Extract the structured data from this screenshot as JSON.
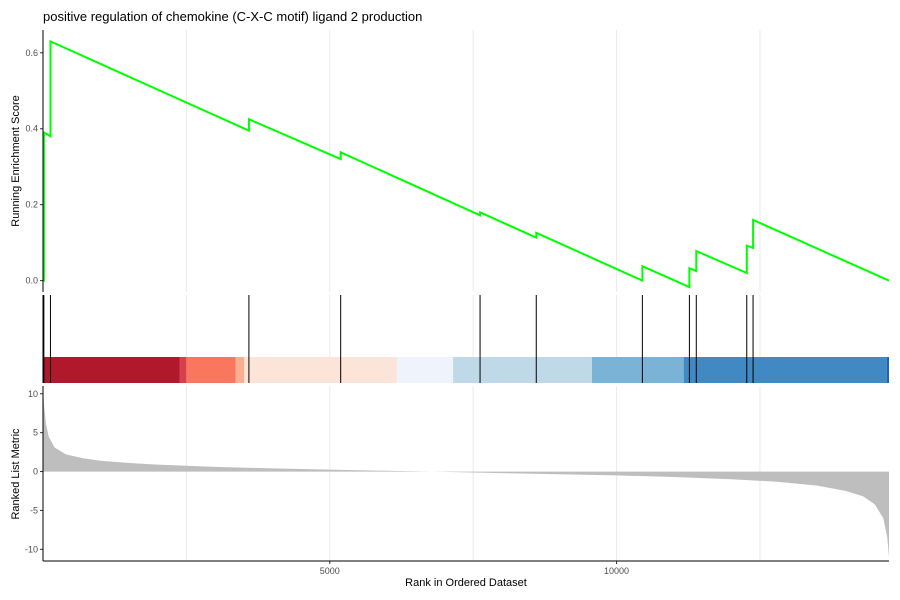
{
  "chart_data": {
    "type": "line",
    "title": "positive regulation of chemokine (C-X-C motif) ligand 2 production",
    "n_genes": 14750,
    "colors": {
      "enrichment_line": "#00ff00",
      "hit_line": "#000000",
      "metric_fill": "#bebebe",
      "grid": "#ebebeb"
    },
    "panels": [
      {
        "name": "running-enrichment",
        "ylabel": "Running Enrichment Score",
        "ylim": [
          -0.03,
          0.66
        ],
        "yticks": [
          0.0,
          0.2,
          0.4,
          0.6
        ],
        "ytick_labels": [
          "0.0",
          "0.2",
          "0.4",
          "0.6"
        ]
      },
      {
        "name": "ranked-metric",
        "ylabel": "Ranked List Metric",
        "ylim": [
          -11.5,
          11
        ],
        "yticks": [
          10,
          5,
          0,
          -5,
          -10
        ],
        "ytick_labels": [
          "10",
          "5",
          "0",
          "-5",
          "-10"
        ]
      }
    ],
    "xlabel": "Rank in Ordered Dataset",
    "xlim": [
      0,
      14750
    ],
    "xticks": [
      5000,
      10000
    ],
    "xtick_labels": [
      "5000",
      "10000"
    ],
    "hits": [
      15,
      130,
      3590,
      5190,
      7620,
      8600,
      10450,
      11270,
      11390,
      12270,
      12380
    ],
    "running_score": {
      "x": [
        0,
        15,
        15,
        130,
        130,
        3590,
        3590,
        5190,
        5190,
        7620,
        7620,
        8600,
        8600,
        10450,
        10450,
        11270,
        11270,
        11390,
        11390,
        12270,
        12270,
        12380,
        12380,
        14750
      ],
      "y": [
        0.0,
        0.0,
        0.39,
        0.38,
        0.63,
        0.395,
        0.425,
        0.32,
        0.338,
        0.172,
        0.18,
        0.113,
        0.126,
        0.0,
        0.038,
        -0.017,
        0.033,
        0.025,
        0.078,
        0.02,
        0.092,
        0.086,
        0.16,
        0.0
      ]
    },
    "metric_curve": {
      "x": [
        0,
        20,
        50,
        100,
        200,
        400,
        700,
        1000,
        1500,
        2000,
        3000,
        4000,
        5000,
        6000,
        7000,
        8000,
        9000,
        10000,
        11000,
        12000,
        12800,
        13500,
        14000,
        14300,
        14500,
        14650,
        14720,
        14750
      ],
      "y": [
        11,
        8.5,
        6.2,
        4.5,
        3.1,
        2.2,
        1.7,
        1.4,
        1.1,
        0.9,
        0.6,
        0.4,
        0.25,
        0.1,
        -0.05,
        -0.2,
        -0.35,
        -0.5,
        -0.7,
        -1.0,
        -1.3,
        -1.8,
        -2.5,
        -3.2,
        -4.2,
        -6.0,
        -8.5,
        -11
      ]
    },
    "color_bands": [
      {
        "start": 0,
        "end": 2380,
        "color": "#b2182b"
      },
      {
        "start": 2380,
        "end": 2500,
        "color": "#d6404b"
      },
      {
        "start": 2500,
        "end": 3360,
        "color": "#fb765f"
      },
      {
        "start": 3360,
        "end": 3510,
        "color": "#fcae91"
      },
      {
        "start": 3510,
        "end": 6170,
        "color": "#fde4d8"
      },
      {
        "start": 6170,
        "end": 7150,
        "color": "#eff3fb"
      },
      {
        "start": 7150,
        "end": 9570,
        "color": "#c0d9e8"
      },
      {
        "start": 9570,
        "end": 11170,
        "color": "#7ab3d6"
      },
      {
        "start": 11170,
        "end": 14710,
        "color": "#4189c2"
      },
      {
        "start": 14710,
        "end": 14750,
        "color": "#2166ac"
      }
    ]
  }
}
